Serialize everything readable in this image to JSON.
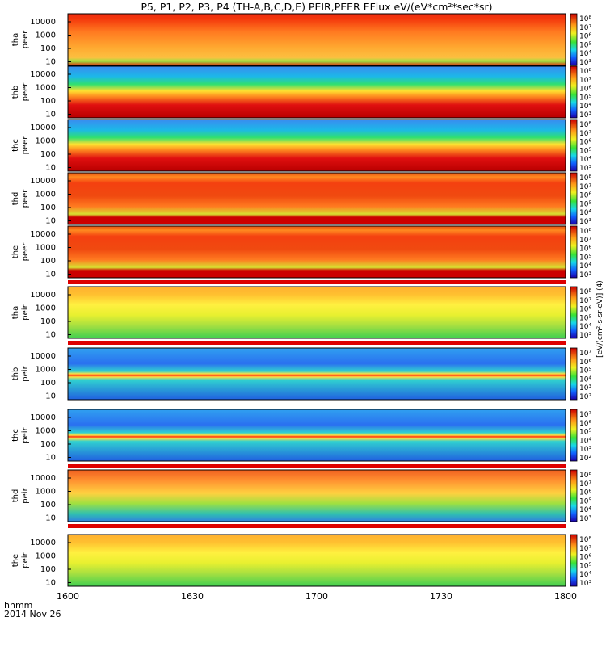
{
  "figure": {
    "title": "P5, P1, P2, P3, P4 (TH-A,B,C,D,E) PEIR,PEER EFlux eV/(eV*cm²*sec*sr)",
    "time_label": "hhmm",
    "date_label": "2014 Nov 26",
    "colorbar_units": "[eV/(cm²-s-sr-eV)] (4)"
  },
  "chart_data": {
    "type": "heatmap",
    "x_axis": {
      "ticks": [
        "1600",
        "1630",
        "1700",
        "1730",
        "1800"
      ],
      "range": [
        "1600",
        "1800"
      ]
    },
    "y_axis_scale": "log",
    "panels": [
      {
        "id": "tha_peer",
        "ylabel": [
          "tha",
          "peer"
        ],
        "yticks": [
          "10000",
          "1000",
          "100",
          "10"
        ],
        "cbar_ticks": [
          "10⁸",
          "10⁷",
          "10⁶",
          "10⁵",
          "10⁴",
          "10³"
        ],
        "pattern": "orange-hot",
        "sep_after": false
      },
      {
        "id": "thb_peer",
        "ylabel": [
          "thb",
          "peer"
        ],
        "yticks": [
          "10000",
          "1000",
          "100",
          "10"
        ],
        "cbar_ticks": [
          "10⁸",
          "10⁷",
          "10⁶",
          "10⁵",
          "10⁴",
          "10³"
        ],
        "pattern": "bands-blue",
        "sep_after": false
      },
      {
        "id": "thc_peer",
        "ylabel": [
          "thc",
          "peer"
        ],
        "yticks": [
          "10000",
          "1000",
          "100",
          "10"
        ],
        "cbar_ticks": [
          "10⁸",
          "10⁷",
          "10⁶",
          "10⁵",
          "10⁴",
          "10³"
        ],
        "pattern": "bands-blue",
        "sep_after": false
      },
      {
        "id": "thd_peer",
        "ylabel": [
          "thd",
          "peer"
        ],
        "yticks": [
          "10000",
          "1000",
          "100",
          "10"
        ],
        "cbar_ticks": [
          "10⁸",
          "10⁷",
          "10⁶",
          "10⁵",
          "10⁴",
          "10³"
        ],
        "pattern": "red-dense",
        "sep_after": false
      },
      {
        "id": "the_peer",
        "ylabel": [
          "the",
          "peer"
        ],
        "yticks": [
          "10000",
          "1000",
          "100",
          "10"
        ],
        "cbar_ticks": [
          "10⁸",
          "10⁷",
          "10⁶",
          "10⁵",
          "10⁴",
          "10³"
        ],
        "pattern": "red-dense",
        "sep_after": true
      },
      {
        "id": "tha_peir",
        "ylabel": [
          "tha",
          "peir"
        ],
        "yticks": [
          "10000",
          "1000",
          "100",
          "10"
        ],
        "cbar_ticks": [
          "10⁸",
          "10⁷",
          "10⁶",
          "10⁵",
          "10⁴",
          "10³"
        ],
        "pattern": "ion-yellow",
        "sep_after": true
      },
      {
        "id": "thb_peir",
        "ylabel": [
          "thb",
          "peir"
        ],
        "yticks": [
          "10000",
          "1000",
          "100",
          "10"
        ],
        "cbar_ticks": [
          "10⁷",
          "10⁶",
          "10⁵",
          "10⁴",
          "10³",
          "10²"
        ],
        "pattern": "ion-band",
        "sep_after": false
      },
      {
        "id": "thc_peir",
        "ylabel": [
          "thc",
          "peir"
        ],
        "yticks": [
          "10000",
          "1000",
          "100",
          "10"
        ],
        "cbar_ticks": [
          "10⁷",
          "10⁶",
          "10⁵",
          "10⁴",
          "10³",
          "10²"
        ],
        "pattern": "ion-band",
        "sep_after": true
      },
      {
        "id": "thd_peir",
        "ylabel": [
          "thd",
          "peir"
        ],
        "yticks": [
          "10000",
          "1000",
          "100",
          "10"
        ],
        "cbar_ticks": [
          "10⁸",
          "10⁷",
          "10⁶",
          "10⁵",
          "10⁴",
          "10³"
        ],
        "pattern": "ion-orange",
        "sep_after": true
      },
      {
        "id": "the_peir",
        "ylabel": [
          "the",
          "peir"
        ],
        "yticks": [
          "10000",
          "1000",
          "100",
          "10"
        ],
        "cbar_ticks": [
          "10⁸",
          "10⁷",
          "10⁶",
          "10⁵",
          "10⁴",
          "10³"
        ],
        "pattern": "ion-yellow",
        "sep_after": false
      }
    ]
  }
}
